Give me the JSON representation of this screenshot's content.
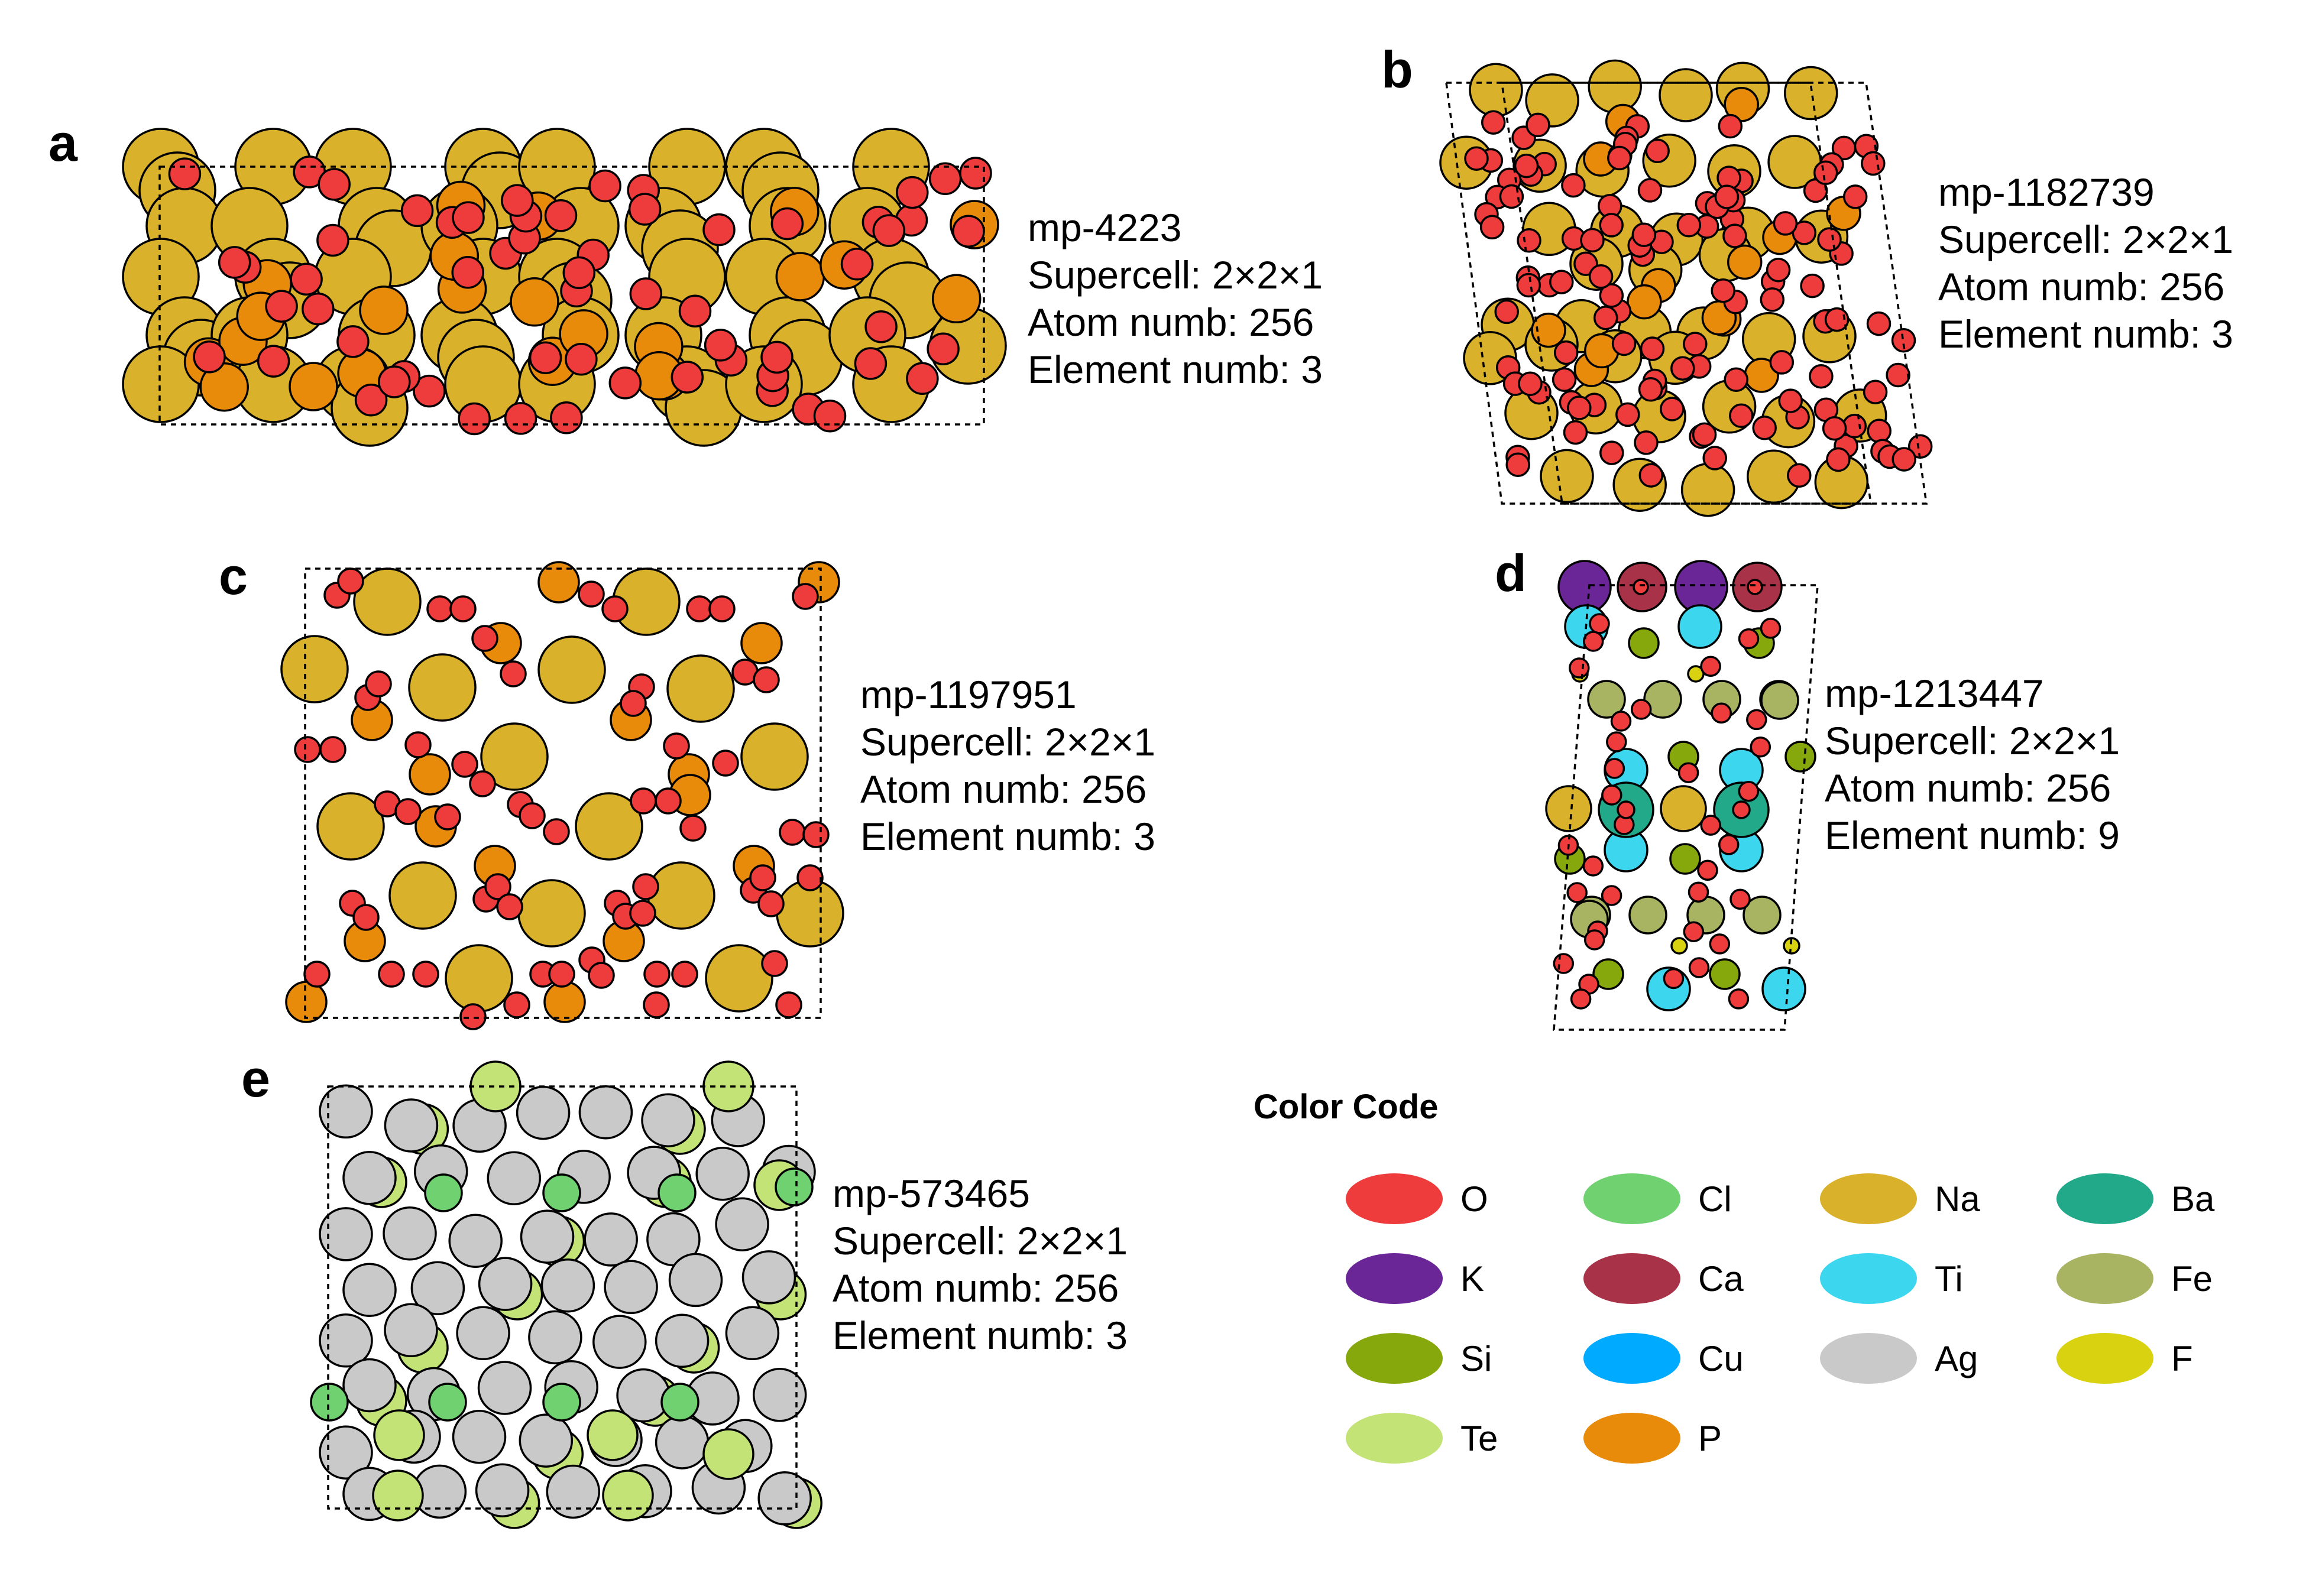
{
  "panels": [
    {
      "letter": "a",
      "id": "mp-4223",
      "supercell": "Supercell: 2×2×1",
      "atoms": "Atom numb: 256",
      "elements": "Element numb: 3"
    },
    {
      "letter": "b",
      "id": "mp-1182739",
      "supercell": "Supercell: 2×2×1",
      "atoms": "Atom numb: 256",
      "elements": "Element numb: 3"
    },
    {
      "letter": "c",
      "id": "mp-1197951",
      "supercell": "Supercell: 2×2×1",
      "atoms": "Atom numb: 256",
      "elements": "Element numb: 3"
    },
    {
      "letter": "d",
      "id": "mp-1213447",
      "supercell": "Supercell: 2×2×1",
      "atoms": "Atom numb: 256",
      "elements": "Element numb: 9"
    },
    {
      "letter": "e",
      "id": "mp-573465",
      "supercell": "Supercell: 2×2×1",
      "atoms": "Atom numb: 256",
      "elements": "Element numb: 3"
    }
  ],
  "legend": {
    "title": "Color Code",
    "items": [
      {
        "element": "O",
        "color": "#ee3b3b"
      },
      {
        "element": "Cl",
        "color": "#6fd16f"
      },
      {
        "element": "Na",
        "color": "#d9b12a"
      },
      {
        "element": "Ba",
        "color": "#22a98a"
      },
      {
        "element": "K",
        "color": "#6a2596"
      },
      {
        "element": "Ca",
        "color": "#a83247"
      },
      {
        "element": "Ti",
        "color": "#3cd6ee"
      },
      {
        "element": "Fe",
        "color": "#a8b461"
      },
      {
        "element": "Si",
        "color": "#86a80c"
      },
      {
        "element": "Cu",
        "color": "#00aaff"
      },
      {
        "element": "Ag",
        "color": "#c9c9c9"
      },
      {
        "element": "F",
        "color": "#d8d211"
      },
      {
        "element": "Te",
        "color": "#c3e376"
      },
      {
        "element": "P",
        "color": "#e88a0a"
      }
    ]
  }
}
